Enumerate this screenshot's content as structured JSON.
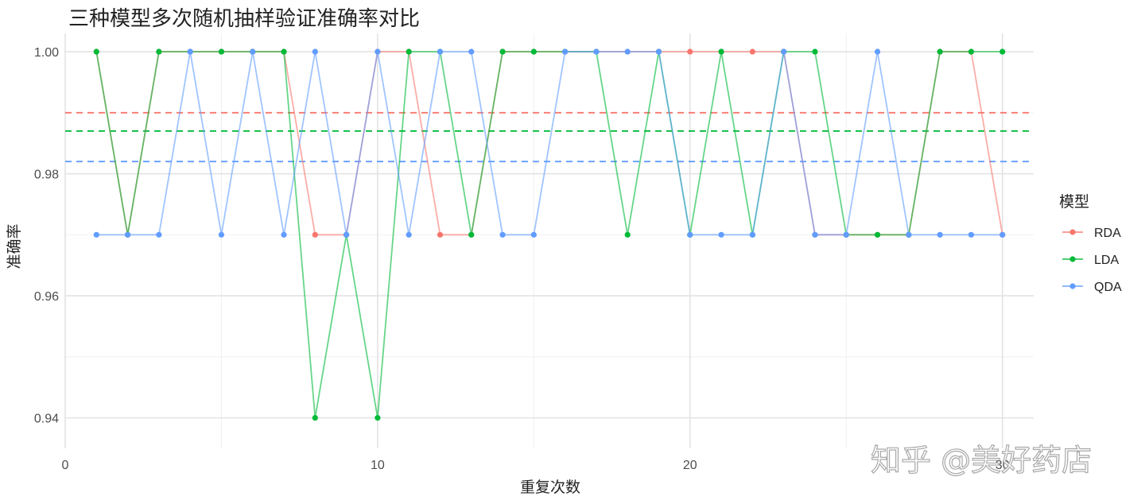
{
  "chart_data": {
    "type": "line",
    "title": "三种模型多次随机抽样验证准确率对比",
    "xlabel": "重复次数",
    "ylabel": "准确率",
    "xlim": [
      0,
      31
    ],
    "ylim": [
      0.935,
      1.003
    ],
    "x_ticks": [
      0,
      10,
      20,
      30
    ],
    "x_tick_labels": [
      "0",
      "10",
      "20",
      "30"
    ],
    "y_ticks": [
      0.94,
      0.96,
      0.98,
      1.0
    ],
    "y_tick_labels": [
      "0.94",
      "0.96",
      "0.98",
      "1.00"
    ],
    "grid": true,
    "legend": {
      "title": "模型",
      "position": "right"
    },
    "x": [
      1,
      2,
      3,
      4,
      5,
      6,
      7,
      8,
      9,
      10,
      11,
      12,
      13,
      14,
      15,
      16,
      17,
      18,
      19,
      20,
      21,
      22,
      23,
      24,
      25,
      26,
      27,
      28,
      29,
      30
    ],
    "series": [
      {
        "name": "RDA",
        "color": "#F8766D",
        "values": [
          1.0,
          0.97,
          1.0,
          1.0,
          1.0,
          1.0,
          1.0,
          0.97,
          0.97,
          1.0,
          1.0,
          0.97,
          0.97,
          1.0,
          1.0,
          1.0,
          1.0,
          1.0,
          1.0,
          1.0,
          1.0,
          1.0,
          1.0,
          0.97,
          0.97,
          0.97,
          0.97,
          1.0,
          1.0,
          0.97
        ],
        "mean": 0.99
      },
      {
        "name": "LDA",
        "color": "#00BA38",
        "values": [
          1.0,
          0.97,
          1.0,
          1.0,
          1.0,
          1.0,
          1.0,
          0.94,
          0.97,
          0.94,
          1.0,
          1.0,
          0.97,
          1.0,
          1.0,
          1.0,
          1.0,
          0.97,
          1.0,
          0.97,
          1.0,
          0.97,
          1.0,
          1.0,
          0.97,
          0.97,
          0.97,
          1.0,
          1.0,
          1.0
        ],
        "mean": 0.987
      },
      {
        "name": "QDA",
        "color": "#619CFF",
        "values": [
          0.97,
          0.97,
          0.97,
          1.0,
          0.97,
          1.0,
          0.97,
          1.0,
          0.97,
          1.0,
          0.97,
          1.0,
          1.0,
          0.97,
          0.97,
          1.0,
          1.0,
          1.0,
          1.0,
          0.97,
          0.97,
          0.97,
          1.0,
          0.97,
          0.97,
          1.0,
          0.97,
          0.97,
          0.97,
          0.97
        ],
        "mean": 0.982
      }
    ]
  },
  "watermark": "知乎 @美好药店"
}
